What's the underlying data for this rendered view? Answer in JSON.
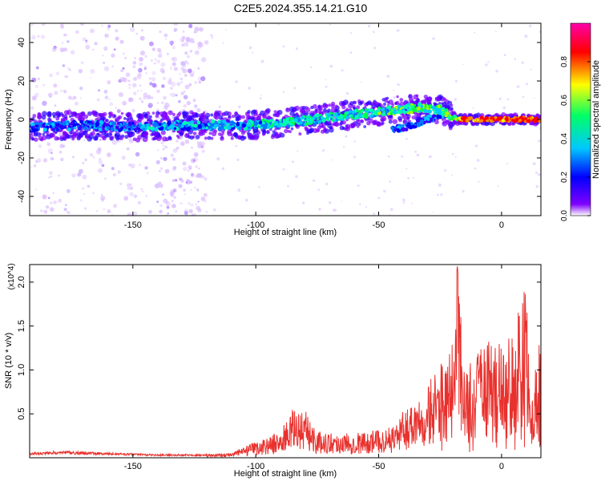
{
  "title": "C2E5.2024.355.14.21.G10",
  "chart_data": [
    {
      "type": "heatmap",
      "xlabel": "Height of straight line (km)",
      "ylabel": "Frequency (Hz)",
      "xlim": [
        -192,
        16
      ],
      "ylim": [
        -50,
        50
      ],
      "xticks": [
        -150,
        -100,
        -50,
        0
      ],
      "yticks": [
        -40,
        -20,
        0,
        20,
        40
      ],
      "colorbar": {
        "label": "Normalized spectral amplitude",
        "range": [
          0,
          1
        ],
        "ticks": [
          0.0,
          0.2,
          0.4,
          0.6,
          0.8
        ],
        "colors": [
          "#ffffff",
          "#7f00ff",
          "#0000ff",
          "#00c8ff",
          "#00ff66",
          "#ffff00",
          "#ff0000",
          "#ff00aa"
        ]
      },
      "band_centerline": [
        {
          "x": -192,
          "y": -4
        },
        {
          "x": -170,
          "y": -3
        },
        {
          "x": -150,
          "y": -4
        },
        {
          "x": -130,
          "y": -3
        },
        {
          "x": -110,
          "y": -3
        },
        {
          "x": -90,
          "y": -2
        },
        {
          "x": -70,
          "y": 1
        },
        {
          "x": -50,
          "y": 4
        },
        {
          "x": -35,
          "y": 6
        },
        {
          "x": -25,
          "y": 5
        },
        {
          "x": -18,
          "y": 0
        },
        {
          "x": -10,
          "y": 0
        },
        {
          "x": 0,
          "y": 0
        },
        {
          "x": 15,
          "y": 0
        }
      ],
      "band_branch_lower": [
        {
          "x": -45,
          "y": -5
        },
        {
          "x": -38,
          "y": -4
        },
        {
          "x": -30,
          "y": 0
        },
        {
          "x": -22,
          "y": 3
        }
      ],
      "background_scatter_region": {
        "x_from": -192,
        "x_to": -120
      }
    },
    {
      "type": "line",
      "xlabel": "Height of straight line (km)",
      "ylabel": "SNR (10 * v/v)",
      "y_multiplier": "(x10^4)",
      "xlim": [
        -192,
        16
      ],
      "ylim": [
        0,
        2.2
      ],
      "xticks": [
        -150,
        -100,
        -50,
        0
      ],
      "yticks": [
        0.5,
        1.0,
        1.5,
        2.0
      ],
      "series_color": "#e8312d",
      "envelope": [
        {
          "x": -192,
          "y": 0.06
        },
        {
          "x": -180,
          "y": 0.08
        },
        {
          "x": -160,
          "y": 0.06
        },
        {
          "x": -140,
          "y": 0.04
        },
        {
          "x": -120,
          "y": 0.04
        },
        {
          "x": -110,
          "y": 0.06
        },
        {
          "x": -100,
          "y": 0.18
        },
        {
          "x": -90,
          "y": 0.3
        },
        {
          "x": -85,
          "y": 0.55
        },
        {
          "x": -80,
          "y": 0.55
        },
        {
          "x": -75,
          "y": 0.3
        },
        {
          "x": -65,
          "y": 0.28
        },
        {
          "x": -55,
          "y": 0.3
        },
        {
          "x": -45,
          "y": 0.35
        },
        {
          "x": -38,
          "y": 0.6
        },
        {
          "x": -32,
          "y": 0.85
        },
        {
          "x": -27,
          "y": 0.95
        },
        {
          "x": -20,
          "y": 1.3
        },
        {
          "x": -18,
          "y": 2.2
        },
        {
          "x": -15,
          "y": 1.0
        },
        {
          "x": -10,
          "y": 1.2
        },
        {
          "x": -5,
          "y": 1.35
        },
        {
          "x": 0,
          "y": 1.35
        },
        {
          "x": 5,
          "y": 1.6
        },
        {
          "x": 10,
          "y": 1.95
        },
        {
          "x": 12,
          "y": 0.5
        },
        {
          "x": 15,
          "y": 1.4
        }
      ]
    }
  ]
}
